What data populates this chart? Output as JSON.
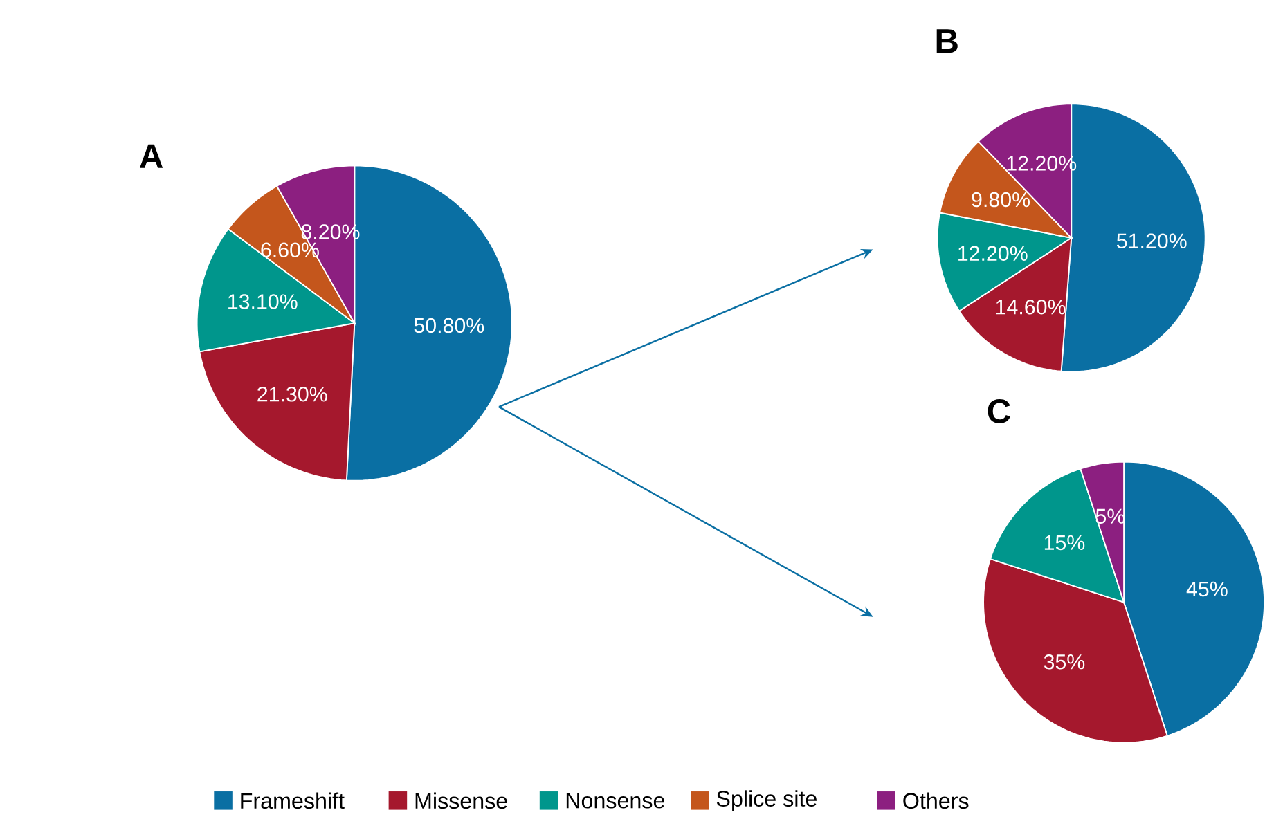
{
  "chart_data": [
    {
      "type": "pie",
      "title": "A",
      "categories": [
        "Frameshift",
        "Missense",
        "Nonsense",
        "Splice site",
        "Others"
      ],
      "values": [
        50.8,
        21.3,
        13.1,
        6.6,
        8.2
      ],
      "value_labels": [
        "50.80%",
        "21.30%",
        "13.10%",
        "6.60%",
        "8.20%"
      ],
      "colors": [
        "#0a6fa3",
        "#a5182d",
        "#00968c",
        "#c4561c",
        "#8c1f80"
      ],
      "legend": "bottom"
    },
    {
      "type": "pie",
      "title": "B",
      "values": [
        51.2,
        14.6,
        12.2,
        9.8,
        12.2
      ],
      "value_labels": [
        "51.20%",
        "14.60%",
        "12.20%",
        "9.80%",
        "12.20%"
      ],
      "colors": [
        "#0a6fa3",
        "#a5182d",
        "#00968c",
        "#c4561c",
        "#8c1f80"
      ]
    },
    {
      "type": "pie",
      "title": "C",
      "values": [
        45,
        35,
        15,
        5
      ],
      "value_labels": [
        "45%",
        "35%",
        "15%",
        "5%"
      ],
      "colors": [
        "#0a6fa3",
        "#a5182d",
        "#00968c",
        "#8c1f80"
      ]
    }
  ]
}
